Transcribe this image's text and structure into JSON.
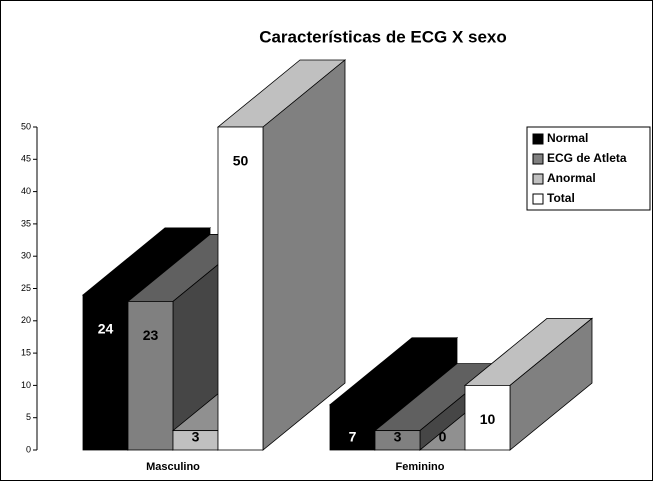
{
  "chart_data": {
    "type": "bar3d",
    "title": "Características de ECG X sexo",
    "categories": [
      "Masculino",
      "Feminino"
    ],
    "series": [
      {
        "name": "Normal",
        "color": "#000000",
        "values": [
          24,
          7
        ]
      },
      {
        "name": "ECG de Atleta",
        "color": "#808080",
        "values": [
          23,
          3
        ]
      },
      {
        "name": "Anormal",
        "color": "#c0c0c0",
        "values": [
          3,
          0
        ]
      },
      {
        "name": "Total",
        "color": "#ffffff",
        "values": [
          50,
          10
        ]
      }
    ],
    "ylim": [
      0,
      50
    ],
    "yticks": [
      0,
      5,
      10,
      15,
      20,
      25,
      30,
      35,
      40,
      45,
      50
    ],
    "legend": "right"
  }
}
